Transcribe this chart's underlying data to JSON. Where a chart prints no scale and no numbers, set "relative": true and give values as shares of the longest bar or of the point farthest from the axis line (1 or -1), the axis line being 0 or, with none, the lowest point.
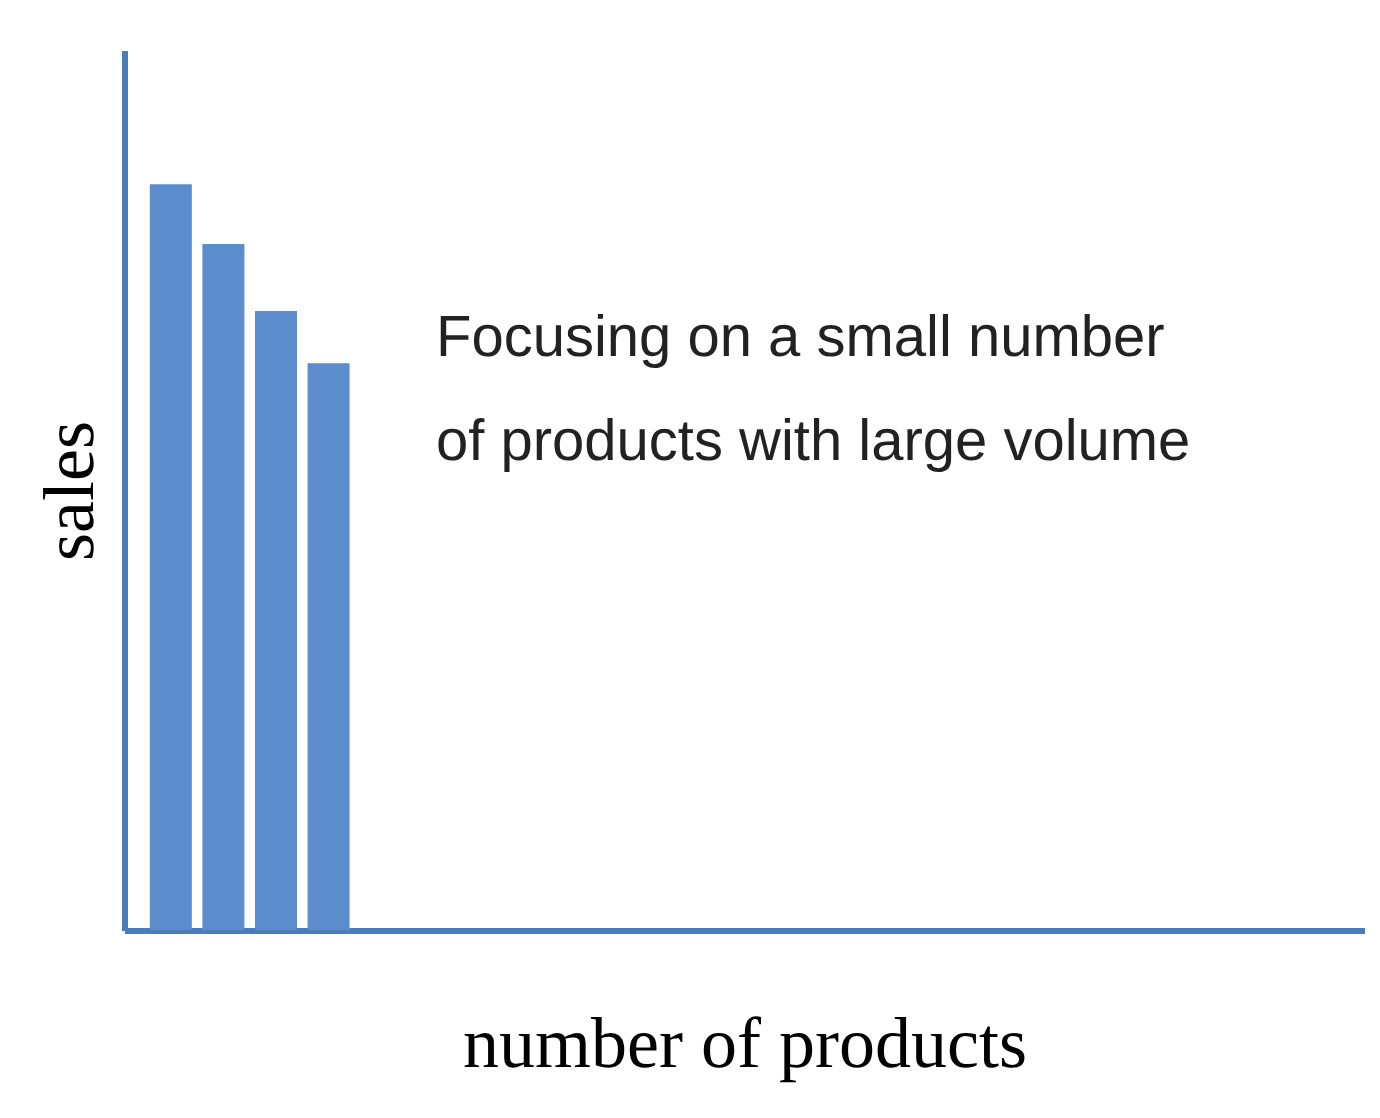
{
  "chart_data": {
    "type": "bar",
    "relative": true,
    "categories": [
      null,
      null,
      null,
      null
    ],
    "values": [
      1,
      0.92,
      0.83,
      0.76
    ],
    "color": "#5b8ccc",
    "xlabel": "number of products",
    "ylabel": "sales",
    "annotations": [
      "Focusing on a small number\nof  products with large volume"
    ],
    "tick_labels": false,
    "grid": false
  }
}
